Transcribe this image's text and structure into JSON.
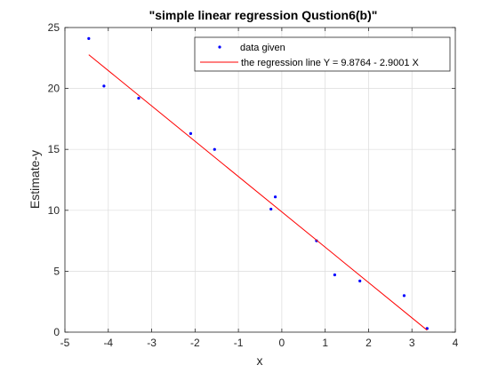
{
  "chart_data": {
    "type": "scatter",
    "title": "\"simple linear regression Qustion6(b)\"",
    "xlabel": "x",
    "ylabel": "Estimate-y",
    "xlim": [
      -5,
      4
    ],
    "ylim": [
      0,
      25
    ],
    "xticks": [
      -5,
      -4,
      -3,
      -2,
      -1,
      0,
      1,
      2,
      3,
      4
    ],
    "yticks": [
      0,
      5,
      10,
      15,
      20,
      25
    ],
    "grid": true,
    "legend_position": "top-right",
    "series": [
      {
        "name": "data given",
        "kind": "scatter",
        "color": "#0000ff",
        "x": [
          -4.45,
          -4.1,
          -3.3,
          -2.1,
          -1.55,
          -0.25,
          -0.15,
          0.8,
          1.22,
          1.8,
          2.82,
          3.35
        ],
        "y": [
          24.1,
          20.2,
          19.2,
          16.3,
          15.0,
          10.1,
          11.1,
          7.5,
          4.7,
          4.2,
          3.0,
          0.3
        ]
      },
      {
        "name": "the regression line Y = 9.8764 - 2.9001 X",
        "kind": "line",
        "color": "#ff0000",
        "x": [
          -4.45,
          3.35
        ],
        "y": [
          22.77,
          0.16
        ]
      }
    ]
  }
}
